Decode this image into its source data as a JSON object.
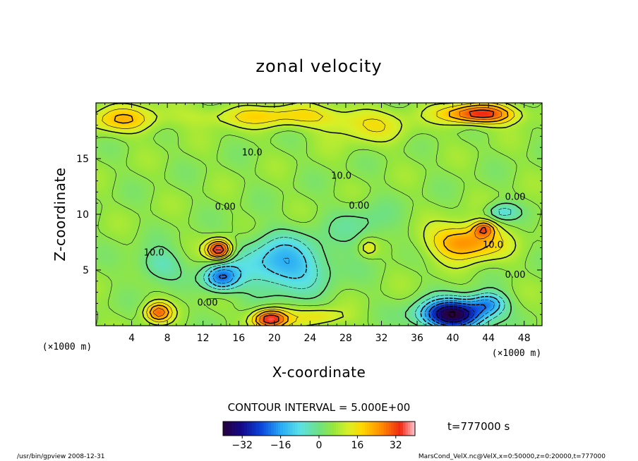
{
  "chart_data": {
    "type": "heatmap",
    "title": "zonal velocity",
    "xlabel": "X-coordinate",
    "ylabel": "Z-coordinate",
    "x_unit": "(×1000 m)",
    "y_unit": "(×1000 m)",
    "xlim": [
      0,
      50
    ],
    "ylim": [
      0,
      20
    ],
    "x_ticks": [
      4,
      8,
      12,
      16,
      20,
      24,
      28,
      32,
      36,
      40,
      44,
      48
    ],
    "y_ticks": [
      5,
      10,
      15
    ],
    "contour_interval_text": "CONTOUR INTERVAL = 5.000E+00",
    "time_text": "t=777000 s",
    "colorbar": {
      "range": [
        -40,
        40
      ],
      "ticks": [
        -32,
        -16,
        0,
        16,
        32
      ]
    },
    "contour_labels": [
      {
        "text": "10.0",
        "x": 17.5,
        "y": 15.3
      },
      {
        "text": "10.0",
        "x": 27.5,
        "y": 13.2
      },
      {
        "text": "0.00",
        "x": 14.5,
        "y": 10.4
      },
      {
        "text": "0.00",
        "x": 29.5,
        "y": 10.5
      },
      {
        "text": "0.00",
        "x": 47.0,
        "y": 11.3
      },
      {
        "text": "10.0",
        "x": 6.5,
        "y": 6.3
      },
      {
        "text": "10.0",
        "x": 44.5,
        "y": 7.0
      },
      {
        "text": "0.00",
        "x": 47.0,
        "y": 4.3
      },
      {
        "text": "0.00",
        "x": 12.5,
        "y": 1.8
      }
    ],
    "features": [
      {
        "x": 43.0,
        "y": 19.0,
        "sx": 4.0,
        "sy": 0.9,
        "v": 30
      },
      {
        "x": 3.0,
        "y": 18.5,
        "sx": 4.0,
        "sy": 1.2,
        "v": 14
      },
      {
        "x": 20.0,
        "y": 18.8,
        "sx": 9.0,
        "sy": 1.0,
        "v": 12
      },
      {
        "x": 30.5,
        "y": 17.8,
        "sx": 5.0,
        "sy": 1.5,
        "v": 8
      },
      {
        "x": 40.0,
        "y": 1.0,
        "sx": 3.5,
        "sy": 1.3,
        "v": -46
      },
      {
        "x": 44.0,
        "y": 2.0,
        "sx": 2.0,
        "sy": 1.0,
        "v": -18
      },
      {
        "x": 14.0,
        "y": 4.3,
        "sx": 2.0,
        "sy": 1.2,
        "v": -24
      },
      {
        "x": 21.0,
        "y": 5.5,
        "sx": 5.0,
        "sy": 2.5,
        "v": -20
      },
      {
        "x": 7.0,
        "y": 5.5,
        "sx": 2.5,
        "sy": 1.5,
        "v": -10
      },
      {
        "x": 30.0,
        "y": 9.0,
        "sx": 3.5,
        "sy": 2.0,
        "v": -6
      },
      {
        "x": 45.5,
        "y": 10.2,
        "sx": 1.8,
        "sy": 0.8,
        "v": -12
      },
      {
        "x": 13.8,
        "y": 6.8,
        "sx": 1.4,
        "sy": 0.9,
        "v": 34
      },
      {
        "x": 41.5,
        "y": 7.5,
        "sx": 4.0,
        "sy": 1.6,
        "v": 22
      },
      {
        "x": 43.5,
        "y": 8.7,
        "sx": 1.2,
        "sy": 0.7,
        "v": 18
      },
      {
        "x": 19.5,
        "y": 0.6,
        "sx": 2.0,
        "sy": 0.9,
        "v": 32
      },
      {
        "x": 7.0,
        "y": 1.2,
        "sx": 1.5,
        "sy": 0.9,
        "v": 22
      },
      {
        "x": 25.0,
        "y": 0.8,
        "sx": 3.0,
        "sy": 0.8,
        "v": 10
      },
      {
        "x": 30.5,
        "y": 7.0,
        "sx": 1.0,
        "sy": 0.8,
        "v": 10
      }
    ],
    "base_value": 5,
    "grid": false
  },
  "footer": {
    "left": "/usr/bin/gpview   2008-12-31",
    "right": "MarsCond_VelX.nc@VelX,x=0:50000,z=0:20000,t=777000"
  }
}
